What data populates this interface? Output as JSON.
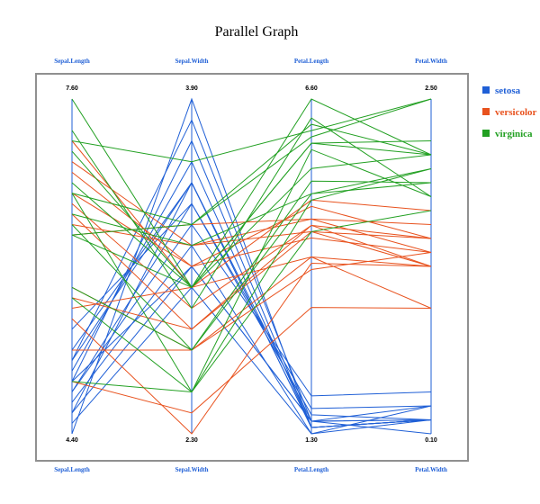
{
  "chart_data": {
    "type": "parallel_coordinates",
    "title": "Parallel Graph",
    "axes": [
      {
        "name": "Sepal.Length",
        "min": 4.4,
        "max": 7.6,
        "min_label": "4.40",
        "max_label": "7.60"
      },
      {
        "name": "Sepal.Width",
        "min": 2.3,
        "max": 3.9,
        "min_label": "2.30",
        "max_label": "3.90"
      },
      {
        "name": "Petal.Length",
        "min": 1.3,
        "max": 6.6,
        "min_label": "1.30",
        "max_label": "6.60"
      },
      {
        "name": "Petal.Width",
        "min": 0.1,
        "max": 2.5,
        "min_label": "0.10",
        "max_label": "2.50"
      }
    ],
    "legend": {
      "placement": "right",
      "entries": [
        {
          "name": "setosa",
          "color": "#1f5fd6"
        },
        {
          "name": "versicolor",
          "color": "#e8521e"
        },
        {
          "name": "virginica",
          "color": "#22a022"
        }
      ]
    },
    "series": [
      {
        "name": "setosa",
        "color": "#1f5fd6",
        "lines": [
          [
            4.4,
            3.9,
            1.4,
            0.2
          ],
          [
            4.6,
            3.5,
            1.4,
            0.2
          ],
          [
            5.0,
            3.6,
            1.4,
            0.2
          ],
          [
            5.4,
            3.4,
            1.7,
            0.3
          ],
          [
            4.8,
            3.4,
            1.6,
            0.2
          ],
          [
            4.7,
            3.2,
            1.3,
            0.2
          ],
          [
            5.1,
            3.8,
            1.5,
            0.3
          ],
          [
            4.9,
            3.1,
            1.5,
            0.1
          ],
          [
            4.9,
            3.7,
            1.4,
            0.2
          ],
          [
            5.2,
            3.5,
            1.5,
            0.2
          ],
          [
            4.5,
            3.0,
            1.3,
            0.3
          ],
          [
            4.8,
            3.3,
            1.9,
            0.4
          ],
          [
            4.6,
            3.1,
            1.5,
            0.2
          ],
          [
            5.1,
            3.5,
            1.4,
            0.2
          ]
        ]
      },
      {
        "name": "versicolor",
        "color": "#e8521e",
        "lines": [
          [
            7.0,
            3.2,
            4.7,
            1.4
          ],
          [
            6.4,
            3.2,
            4.5,
            1.5
          ],
          [
            6.9,
            3.1,
            4.9,
            1.5
          ],
          [
            5.5,
            2.3,
            4.0,
            1.3
          ],
          [
            6.5,
            2.8,
            4.6,
            1.5
          ],
          [
            5.7,
            2.8,
            4.5,
            1.3
          ],
          [
            6.3,
            3.3,
            4.7,
            1.6
          ],
          [
            4.9,
            2.4,
            3.3,
            1.0
          ],
          [
            6.6,
            2.9,
            4.6,
            1.3
          ],
          [
            5.2,
            2.7,
            3.9,
            1.4
          ],
          [
            6.7,
            3.1,
            4.4,
            1.4
          ],
          [
            5.6,
            3.0,
            4.1,
            1.3
          ],
          [
            5.8,
            2.7,
            4.1,
            1.0
          ],
          [
            7.2,
            3.0,
            5.0,
            1.7
          ]
        ]
      },
      {
        "name": "virginica",
        "color": "#22a022",
        "lines": [
          [
            6.3,
            3.3,
            6.0,
            2.5
          ],
          [
            5.8,
            2.7,
            5.1,
            1.9
          ],
          [
            7.1,
            3.0,
            5.9,
            2.1
          ],
          [
            7.6,
            3.0,
            6.6,
            2.1
          ],
          [
            4.9,
            2.5,
            4.5,
            1.7
          ],
          [
            7.3,
            2.9,
            6.3,
            1.8
          ],
          [
            6.7,
            2.5,
            5.8,
            1.8
          ],
          [
            7.2,
            3.6,
            6.1,
            2.5
          ],
          [
            6.5,
            3.2,
            5.1,
            2.0
          ],
          [
            6.4,
            2.7,
            5.3,
            1.9
          ],
          [
            6.8,
            3.0,
            5.5,
            2.1
          ],
          [
            5.7,
            2.5,
            5.0,
            2.0
          ],
          [
            6.3,
            3.0,
            5.9,
            2.2
          ],
          [
            6.7,
            3.3,
            6.2,
            2.1
          ]
        ]
      }
    ]
  }
}
